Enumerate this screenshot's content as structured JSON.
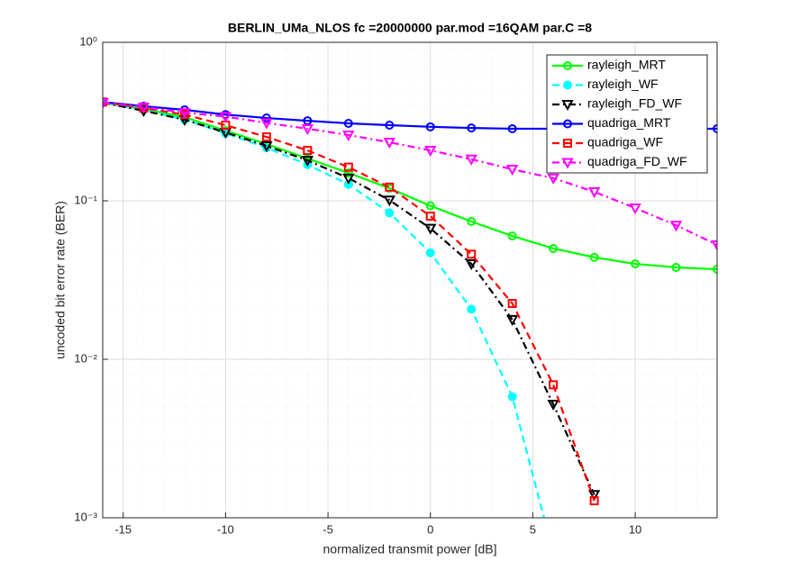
{
  "chart_data": {
    "type": "line",
    "title": "BERLIN_UMa_NLOS fc =20000000 par.mod =16QAM par.C =8",
    "x_label": "normalized transmit power [dB]",
    "y_label": "uncoded bit error rate (BER)",
    "x": [
      -16,
      -14,
      -12,
      -10,
      -8,
      -6,
      -4,
      -2,
      0,
      2,
      4,
      6,
      8,
      10,
      12,
      14
    ],
    "series": [
      {
        "name": "rayleigh_MRT",
        "color": "#00ff00",
        "linestyle": "solid",
        "marker": "circle",
        "values": [
          0.416,
          0.38,
          0.337,
          0.277,
          0.228,
          0.185,
          0.15,
          0.12,
          0.093,
          0.074,
          0.06,
          0.05,
          0.044,
          0.04,
          0.038,
          0.037
        ]
      },
      {
        "name": "rayleigh_WF",
        "color": "#00ffff",
        "linestyle": "dashed",
        "marker": "filled-circle",
        "values": [
          0.416,
          0.375,
          0.325,
          0.267,
          0.216,
          0.169,
          0.127,
          0.084,
          0.047,
          0.0207,
          0.0058,
          0.0006,
          null,
          null,
          null,
          null
        ]
      },
      {
        "name": "rayleigh_FD_WF",
        "color": "#000000",
        "linestyle": "dashdot",
        "marker": "triangle-down",
        "values": [
          0.416,
          0.37,
          0.325,
          0.27,
          0.222,
          0.18,
          0.139,
          0.101,
          0.067,
          0.04,
          0.0178,
          0.0052,
          0.0014,
          null,
          null,
          null
        ]
      },
      {
        "name": "quadriga_MRT",
        "color": "#0000ff",
        "linestyle": "solid",
        "marker": "circle",
        "values": [
          0.42,
          0.395,
          0.375,
          0.35,
          0.333,
          0.32,
          0.308,
          0.3,
          0.293,
          0.288,
          0.285,
          0.285,
          0.285,
          0.285,
          0.285,
          0.285
        ]
      },
      {
        "name": "quadriga_WF",
        "color": "#ff0000",
        "linestyle": "dashed",
        "marker": "square",
        "values": [
          0.42,
          0.385,
          0.35,
          0.3,
          0.253,
          0.208,
          0.163,
          0.122,
          0.08,
          0.046,
          0.0225,
          0.0069,
          0.00128,
          null,
          null,
          null
        ]
      },
      {
        "name": "quadriga_FD_WF",
        "color": "#ff00ff",
        "linestyle": "dashdot",
        "marker": "triangle-down",
        "values": [
          0.416,
          0.39,
          0.36,
          0.34,
          0.31,
          0.285,
          0.26,
          0.234,
          0.208,
          0.183,
          0.158,
          0.139,
          0.114,
          0.09,
          0.07,
          0.0528
        ]
      }
    ],
    "xlim": [
      -16,
      14
    ],
    "xticks": [
      -15,
      -10,
      -5,
      0,
      5,
      10
    ],
    "ylim": [
      0.001,
      1
    ],
    "yscale": "log",
    "yticks": [
      {
        "value": 0.001,
        "label": "10⁻³"
      },
      {
        "value": 0.01,
        "label": "10⁻²"
      },
      {
        "value": 0.1,
        "label": "10⁻¹"
      },
      {
        "value": 1,
        "label": "10⁰"
      }
    ],
    "grid": true,
    "legend": "northeast"
  }
}
